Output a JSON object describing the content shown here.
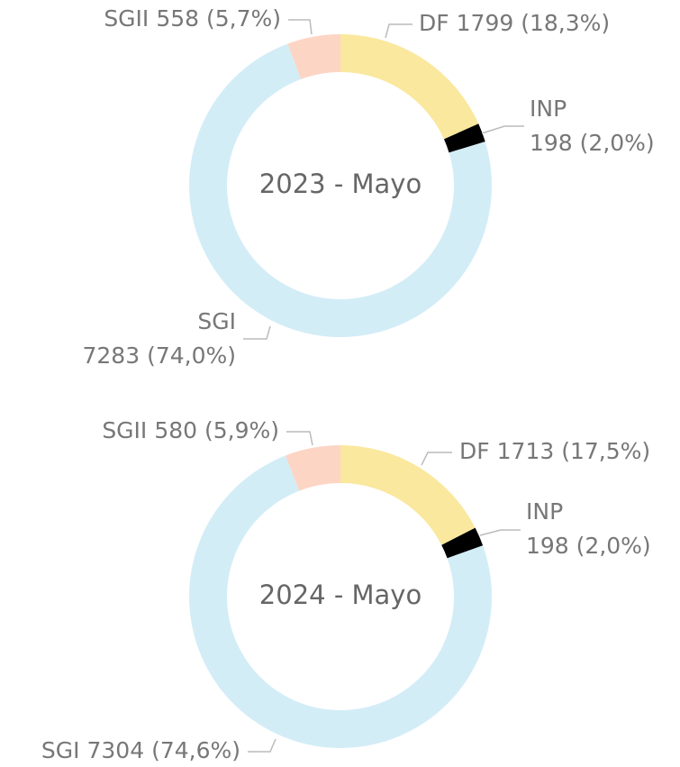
{
  "chart_data": [
    {
      "type": "pie",
      "title": "2023 - Mayo",
      "categories": [
        "DF",
        "INP",
        "SGI",
        "SGII"
      ],
      "values": [
        1799,
        198,
        7283,
        558
      ],
      "value_labels": [
        "1799 (18,3%)",
        "198 (2,0%)",
        "7283 (74,0%)",
        "558 (5,7%)"
      ],
      "colors": [
        "#fae89e",
        "#000000",
        "#d3edf7",
        "#fdd5c5"
      ]
    },
    {
      "type": "pie",
      "title": "2024 - Mayo",
      "categories": [
        "DF",
        "INP",
        "SGI",
        "SGII"
      ],
      "values": [
        1713,
        198,
        7304,
        580
      ],
      "value_labels": [
        "1713 (17,5%)",
        "198 (2,0%)",
        "7304 (74,6%)",
        "580 (5,9%)"
      ],
      "colors": [
        "#fae89e",
        "#000000",
        "#d3edf7",
        "#fdd5c5"
      ]
    }
  ]
}
